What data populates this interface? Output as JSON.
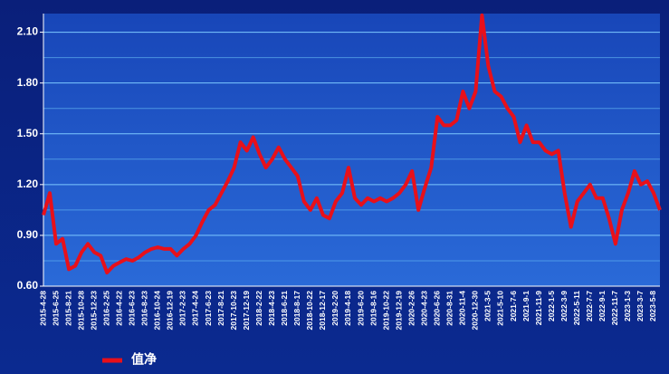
{
  "chart_data": {
    "type": "line",
    "categories": [
      "2015-4-28",
      null,
      "2015-6-25",
      null,
      "2015-8-21",
      null,
      "2015-10-28",
      null,
      "2015-12-23",
      null,
      "2016-2-25",
      null,
      "2016-4-22",
      null,
      "2016-6-23",
      null,
      "2016-8-23",
      null,
      "2016-10-24",
      null,
      "2016-12-19",
      null,
      "2017-2-23",
      null,
      "2017-4-24",
      null,
      "2017-6-23",
      null,
      "2017-8-21",
      null,
      "2017-10-23",
      null,
      "2017-12-19",
      null,
      "2018-2-22",
      null,
      "2018-4-23",
      null,
      "2018-6-21",
      null,
      "2018-8-17",
      null,
      "2018-10-22",
      null,
      "2018-12-17",
      null,
      "2019-2-20",
      null,
      "2019-4-18",
      null,
      "2019-6-20",
      null,
      "2019-8-16",
      null,
      "2019-10-22",
      null,
      "2019-12-19",
      null,
      "2020-2-26",
      null,
      "2020-4-23",
      null,
      "2020-6-26",
      null,
      "2020-8-31",
      null,
      "2020-11-4",
      null,
      "2020-12-30",
      null,
      "2021-3-5",
      null,
      "2021-5-10",
      null,
      "2021-7-6",
      null,
      "2021-9-1",
      null,
      "2021-11-9",
      null,
      "2022-1-5",
      null,
      "2022-3-9",
      null,
      "2022-5-11",
      null,
      "2022-7-7",
      null,
      "2022-9-1",
      null,
      "2022-11-7",
      null,
      "2023-1-3",
      null,
      "2023-3-7",
      null,
      "2023-5-8",
      null
    ],
    "series": [
      {
        "name": "值净",
        "color": "#e8101a",
        "values": [
          1.02,
          1.15,
          0.85,
          0.88,
          0.7,
          0.72,
          0.8,
          0.85,
          0.8,
          0.78,
          0.68,
          0.72,
          0.74,
          0.76,
          0.75,
          0.77,
          0.8,
          0.82,
          0.83,
          0.82,
          0.82,
          0.78,
          0.82,
          0.85,
          0.9,
          0.98,
          1.05,
          1.08,
          1.15,
          1.22,
          1.3,
          1.45,
          1.4,
          1.48,
          1.38,
          1.3,
          1.35,
          1.42,
          1.35,
          1.3,
          1.25,
          1.1,
          1.05,
          1.12,
          1.02,
          1.0,
          1.1,
          1.15,
          1.3,
          1.12,
          1.08,
          1.12,
          1.1,
          1.12,
          1.1,
          1.12,
          1.15,
          1.2,
          1.28,
          1.05,
          1.18,
          1.3,
          1.6,
          1.55,
          1.55,
          1.58,
          1.75,
          1.65,
          1.75,
          2.2,
          1.9,
          1.75,
          1.72,
          1.65,
          1.6,
          1.45,
          1.55,
          1.45,
          1.45,
          1.4,
          1.38,
          1.4,
          1.15,
          0.95,
          1.1,
          1.15,
          1.2,
          1.12,
          1.12,
          1.0,
          0.85,
          1.05,
          1.15,
          1.28,
          1.2,
          1.22,
          1.15,
          1.05
        ]
      }
    ],
    "ylim": [
      0.6,
      2.21
    ],
    "yticks": [
      {
        "value": 0.6,
        "label": "0.60"
      },
      {
        "value": 0.9,
        "label": "0.90"
      },
      {
        "value": 1.2,
        "label": "1.20"
      },
      {
        "value": 1.5,
        "label": "1.50"
      },
      {
        "value": 1.8,
        "label": "1.80"
      },
      {
        "value": 2.1,
        "label": "2.10"
      }
    ],
    "minor_yticks": [
      0.75,
      1.05,
      1.35,
      1.65,
      1.95
    ],
    "grid": true,
    "legend": "bottom-left"
  }
}
